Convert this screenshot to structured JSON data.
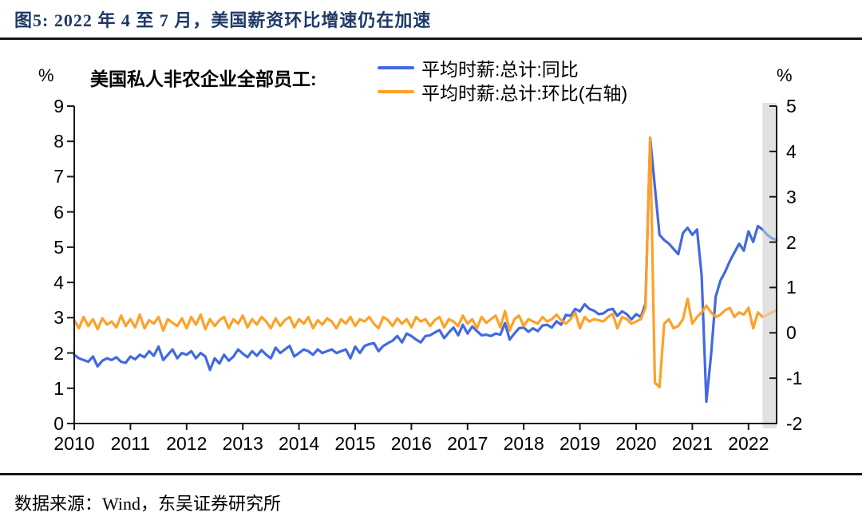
{
  "page": {
    "title": "图5:  2022 年 4 至 7 月，美国薪资环比增速仍在加速",
    "source": "数据来源：Wind，东吴证券研究所"
  },
  "chart": {
    "header": "美国私人非农企业全部员工:",
    "left_axis_unit": "%",
    "right_axis_unit": "%",
    "legend": [
      {
        "label": "平均时薪:总计:同比",
        "color": "#4169e1"
      },
      {
        "label": "平均时薪:总计:环比(右轴)",
        "color": "#ffa028"
      }
    ]
  },
  "colors": {
    "yoy_line": "#4169e1",
    "mom_line": "#ffa028",
    "title_text": "#1f3a68",
    "axis": "#1a1a1a",
    "highlight_band": "#dcdcdc"
  },
  "chart_data": {
    "type": "line",
    "title": "美国私人非农企业全部员工:",
    "grid": false,
    "legend_position": "top",
    "x_start": 2010.0,
    "x_end": 2022.5,
    "x_ticks": [
      2010,
      2011,
      2012,
      2013,
      2014,
      2015,
      2016,
      2017,
      2018,
      2019,
      2020,
      2021,
      2022
    ],
    "left_ylim": [
      0,
      9
    ],
    "left_yticks": [
      0,
      1,
      2,
      3,
      4,
      5,
      6,
      7,
      8,
      9
    ],
    "right_ylim": [
      -2,
      5
    ],
    "right_yticks": [
      -2,
      -1,
      0,
      1,
      2,
      3,
      4,
      5
    ],
    "highlight_band": {
      "from": 2022.25,
      "to": 2022.5,
      "note": "2022年4至7月",
      "color": "#dcdcdc"
    },
    "series": [
      {
        "name": "平均时薪:总计:同比",
        "axis": "left",
        "color": "#4169e1",
        "start": "2010-01",
        "freq": "monthly",
        "values": [
          1.95,
          1.85,
          1.8,
          1.75,
          1.9,
          1.62,
          1.78,
          1.85,
          1.8,
          1.88,
          1.75,
          1.72,
          1.9,
          1.82,
          1.95,
          1.88,
          2.05,
          1.92,
          2.18,
          1.8,
          1.95,
          2.1,
          1.85,
          2.0,
          1.95,
          2.05,
          1.85,
          2.0,
          1.9,
          1.52,
          1.85,
          1.7,
          1.95,
          1.78,
          1.9,
          2.1,
          1.98,
          1.88,
          2.05,
          1.92,
          2.08,
          1.95,
          1.85,
          2.15,
          2.0,
          2.1,
          2.2,
          1.9,
          2.0,
          2.1,
          2.05,
          1.95,
          2.1,
          2.0,
          2.05,
          2.1,
          2.0,
          2.05,
          2.1,
          1.85,
          2.18,
          2.0,
          2.2,
          2.25,
          2.28,
          2.05,
          2.2,
          2.28,
          2.35,
          2.48,
          2.3,
          2.55,
          2.48,
          2.38,
          2.3,
          2.48,
          2.5,
          2.58,
          2.65,
          2.42,
          2.58,
          2.72,
          2.5,
          2.8,
          2.55,
          2.75,
          2.62,
          2.5,
          2.52,
          2.48,
          2.55,
          2.52,
          2.85,
          2.38,
          2.55,
          2.7,
          2.72,
          2.6,
          2.7,
          2.62,
          2.78,
          2.8,
          2.72,
          2.9,
          2.8,
          3.08,
          3.05,
          3.25,
          3.18,
          3.38,
          3.25,
          3.2,
          3.1,
          3.12,
          3.22,
          3.25,
          3.05,
          3.18,
          3.1,
          2.95,
          3.1,
          3.02,
          3.4,
          8.1,
          6.7,
          5.35,
          5.2,
          5.1,
          4.95,
          4.8,
          5.4,
          5.55,
          5.35,
          5.5,
          4.2,
          0.62,
          1.95,
          3.6,
          4.05,
          4.3,
          4.6,
          4.85,
          5.1,
          4.9,
          5.45,
          5.15,
          5.6,
          5.5,
          5.35,
          5.25,
          5.2
        ]
      },
      {
        "name": "平均时薪:总计:环比(右轴)",
        "axis": "right",
        "color": "#ffa028",
        "start": "2010-01",
        "freq": "monthly",
        "values": [
          0.28,
          0.1,
          0.35,
          0.15,
          0.3,
          0.08,
          0.32,
          0.18,
          0.25,
          0.12,
          0.38,
          0.15,
          0.3,
          0.12,
          0.4,
          0.1,
          0.28,
          0.2,
          0.35,
          0.05,
          0.3,
          0.22,
          0.15,
          0.32,
          0.1,
          0.35,
          0.18,
          0.4,
          0.08,
          0.3,
          0.15,
          0.28,
          0.35,
          0.1,
          0.3,
          0.2,
          0.38,
          0.12,
          0.3,
          0.18,
          0.35,
          0.25,
          0.1,
          0.32,
          0.15,
          0.28,
          0.35,
          0.12,
          0.3,
          0.2,
          0.35,
          0.1,
          0.28,
          0.18,
          0.32,
          0.25,
          0.1,
          0.3,
          0.2,
          0.35,
          0.15,
          0.3,
          0.25,
          0.35,
          0.2,
          0.1,
          0.35,
          0.28,
          0.15,
          0.32,
          0.2,
          0.3,
          0.12,
          0.35,
          0.25,
          0.3,
          0.15,
          0.28,
          0.35,
          0.12,
          0.3,
          0.25,
          0.15,
          0.38,
          0.2,
          0.3,
          0.1,
          0.35,
          0.22,
          0.3,
          0.38,
          0.12,
          0.48,
          0.05,
          0.3,
          0.38,
          0.15,
          0.3,
          0.25,
          0.2,
          0.35,
          0.25,
          0.3,
          0.4,
          0.28,
          0.2,
          0.3,
          0.45,
          0.1,
          0.35,
          0.25,
          0.3,
          0.28,
          0.25,
          0.35,
          0.42,
          0.1,
          0.35,
          0.3,
          0.2,
          0.25,
          0.3,
          0.55,
          4.3,
          -1.1,
          -1.2,
          0.2,
          0.3,
          0.1,
          0.15,
          0.3,
          0.75,
          0.2,
          0.35,
          0.45,
          0.6,
          0.45,
          0.35,
          0.4,
          0.5,
          0.55,
          0.35,
          0.45,
          0.4,
          0.55,
          0.1,
          0.45,
          0.35,
          0.4,
          0.45,
          0.5
        ]
      }
    ]
  }
}
